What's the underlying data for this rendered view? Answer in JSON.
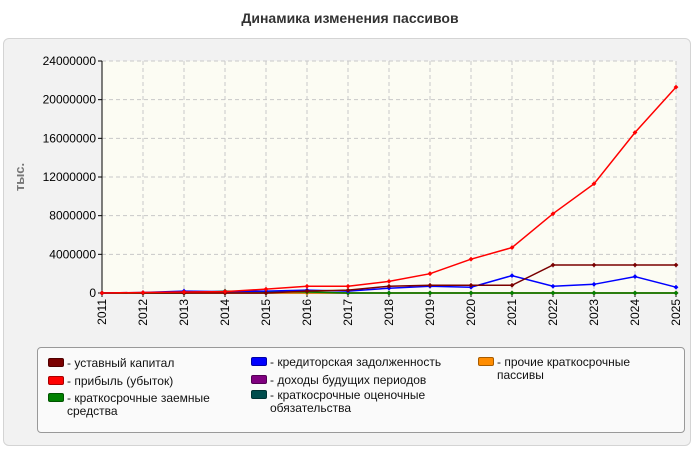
{
  "title": "Динамика изменения пассивов",
  "chart_data": {
    "type": "line",
    "ylabel": "тыс.",
    "ylim": [
      0,
      24000000
    ],
    "yticks": [
      "0",
      "4000000",
      "8000000",
      "12000000",
      "16000000",
      "20000000",
      "24000000"
    ],
    "categories": [
      "2011",
      "2012",
      "2013",
      "2014",
      "2015",
      "2016",
      "2017",
      "2018",
      "2019",
      "2020",
      "2021",
      "2022",
      "2023",
      "2024",
      "2025"
    ],
    "grid": true,
    "legend_position": "bottom",
    "series": [
      {
        "name": "уставный капитал",
        "color": "#7a0000",
        "values": [
          0,
          0,
          0,
          0,
          0,
          200000,
          300000,
          700000,
          800000,
          800000,
          800000,
          2900000,
          2900000,
          2900000,
          2900000
        ]
      },
      {
        "name": "прибыль (убыток)",
        "color": "#ff0000",
        "values": [
          0,
          50000,
          100000,
          150000,
          400000,
          700000,
          700000,
          1200000,
          2000000,
          3500000,
          4700000,
          8200000,
          11300000,
          16600000,
          21300000
        ]
      },
      {
        "name": "краткосрочные заемные средства",
        "color": "#008000",
        "values": [
          0,
          0,
          0,
          200000,
          150000,
          100000,
          0,
          0,
          0,
          0,
          0,
          0,
          0,
          0,
          0
        ]
      },
      {
        "name": "кредиторская задолженность",
        "color": "#0000ff",
        "values": [
          0,
          50000,
          200000,
          150000,
          200000,
          300000,
          200000,
          500000,
          700000,
          600000,
          1800000,
          700000,
          900000,
          1700000,
          600000
        ]
      },
      {
        "name": "доходы будущих периодов",
        "color": "#800080",
        "values": [
          0,
          0,
          0,
          0,
          0,
          0,
          0,
          0,
          0,
          0,
          0,
          0,
          0,
          0,
          0
        ]
      },
      {
        "name": "краткосрочные оценочные обязательства",
        "color": "#004d4d",
        "values": [
          0,
          0,
          0,
          0,
          0,
          0,
          0,
          0,
          0,
          0,
          0,
          0,
          0,
          0,
          0
        ]
      },
      {
        "name": "прочие краткосрочные пассивы",
        "color": "#ff8c00",
        "values": [
          0,
          0,
          0,
          0,
          0,
          0,
          0,
          0,
          0,
          0,
          0,
          0,
          0,
          0,
          0
        ]
      }
    ]
  }
}
